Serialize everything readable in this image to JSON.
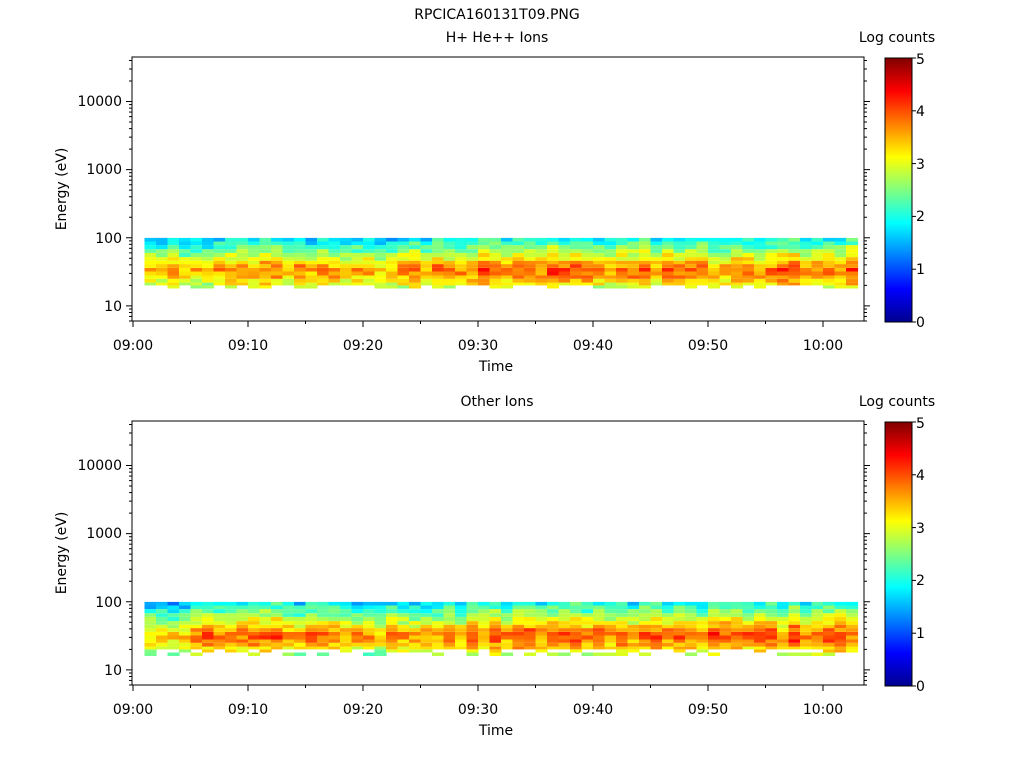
{
  "figure_title": "RPCICA160131T09.PNG",
  "chart_data": [
    {
      "type": "heatmap",
      "title": "H+ He++ Ions",
      "xlabel": "Time",
      "ylabel": "Energy (eV)",
      "x_ticks": [
        "09:00",
        "09:10",
        "09:20",
        "09:30",
        "09:40",
        "09:50",
        "10:00"
      ],
      "x_range": [
        "09:00",
        "10:03"
      ],
      "y_scale": "log",
      "y_ticks": [
        "10",
        "100",
        "1000",
        "10000"
      ],
      "ylim": [
        6,
        45000
      ],
      "colorbar": {
        "label": "Log counts",
        "ticks": [
          "0",
          "1",
          "2",
          "3",
          "4",
          "5"
        ],
        "range": [
          0,
          5
        ]
      },
      "band": {
        "energy_bins_eV": [
          18,
          20,
          22,
          25,
          28,
          32,
          36,
          41,
          46,
          52,
          60,
          68,
          78,
          88
        ],
        "peak_energy_eV": 32,
        "peak_log_counts_by_time": [
          [
            "09:00",
            3.4
          ],
          [
            "09:10",
            3.7
          ],
          [
            "09:20",
            3.5
          ],
          [
            "09:30",
            3.9
          ],
          [
            "09:34",
            4.0
          ],
          [
            "09:40",
            3.8
          ],
          [
            "09:50",
            3.8
          ],
          [
            "10:00",
            3.9
          ]
        ],
        "lower_edge_eV": 16,
        "upper_edge_eV": 95
      }
    },
    {
      "type": "heatmap",
      "title": "Other Ions",
      "xlabel": "Time",
      "ylabel": "Energy (eV)",
      "x_ticks": [
        "09:00",
        "09:10",
        "09:20",
        "09:30",
        "09:40",
        "09:50",
        "10:00"
      ],
      "x_range": [
        "09:00",
        "10:03"
      ],
      "y_scale": "log",
      "y_ticks": [
        "10",
        "100",
        "1000",
        "10000"
      ],
      "ylim": [
        6,
        45000
      ],
      "colorbar": {
        "label": "Log counts",
        "ticks": [
          "0",
          "1",
          "2",
          "3",
          "4",
          "5"
        ],
        "range": [
          0,
          5
        ]
      },
      "band": {
        "energy_bins_eV": [
          16,
          18,
          20,
          22,
          25,
          28,
          32,
          36,
          41,
          46,
          52,
          60,
          68,
          78,
          88
        ],
        "peak_energy_eV": 31,
        "peak_log_counts_by_time": [
          [
            "09:00",
            3.5
          ],
          [
            "09:10",
            3.9
          ],
          [
            "09:20",
            3.6
          ],
          [
            "09:30",
            3.9
          ],
          [
            "09:40",
            4.0
          ],
          [
            "09:50",
            3.9
          ],
          [
            "10:00",
            4.0
          ]
        ],
        "lower_edge_eV": 14,
        "upper_edge_eV": 95
      }
    }
  ]
}
